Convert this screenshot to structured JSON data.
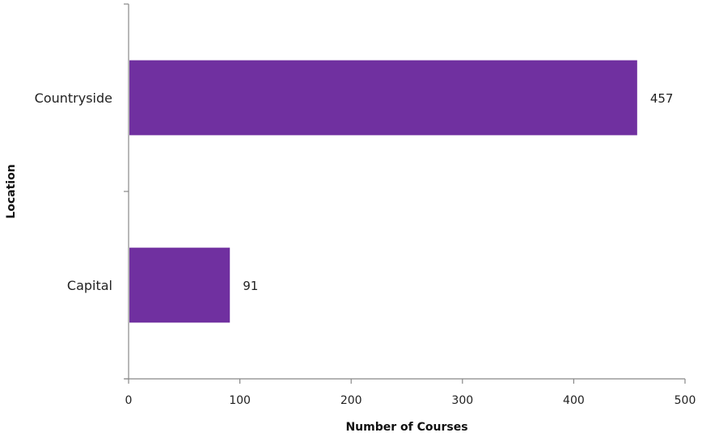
{
  "chart_data": {
    "type": "bar",
    "orientation": "horizontal",
    "categories": [
      "Capital",
      "Countryside"
    ],
    "values": [
      91,
      457
    ],
    "xlabel": "Number of Courses",
    "ylabel": "Location",
    "xlim": [
      0,
      500
    ],
    "xticks": [
      "0",
      "100",
      "200",
      "300",
      "400",
      "500"
    ],
    "data_labels": [
      "91",
      "457"
    ],
    "bar_color": "#7030A0",
    "grid": false,
    "legend": "none"
  }
}
